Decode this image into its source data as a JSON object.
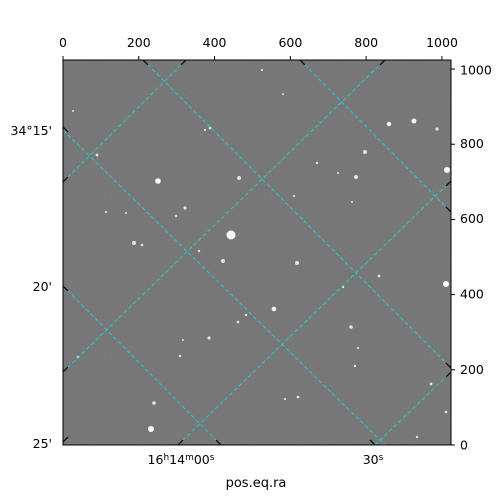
{
  "figure": {
    "xlabel": "pos.eq.ra",
    "top_ticks": [
      "0",
      "200",
      "400",
      "600",
      "800",
      "1000"
    ],
    "right_ticks": [
      "0",
      "200",
      "400",
      "600",
      "800",
      "1000"
    ],
    "ra_ticks": [
      "16h14m00s",
      "30s"
    ],
    "dec_ticks": [
      "34°15'",
      "20'",
      "25'"
    ],
    "grid_color": "#22cccc",
    "background_color": "#6e6e6e",
    "pixel_range": [
      0,
      1024
    ]
  }
}
